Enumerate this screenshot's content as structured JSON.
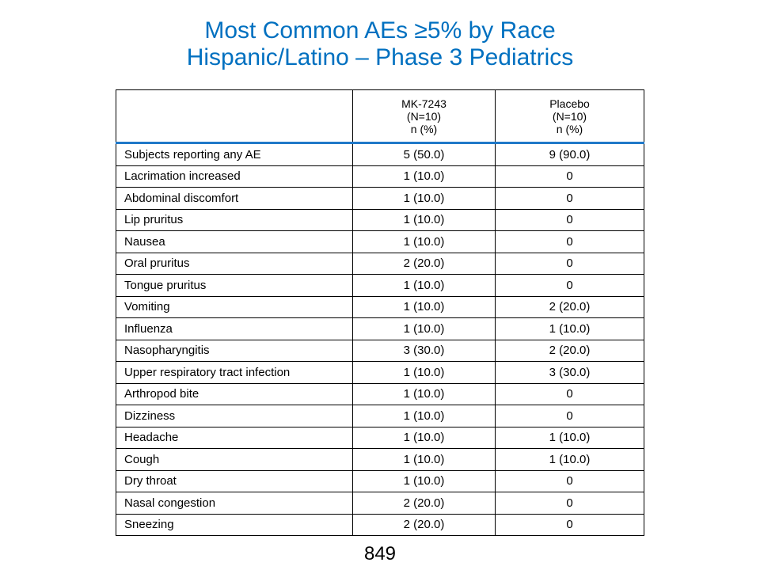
{
  "title": {
    "line1": "Most Common AEs ≥5% by Race",
    "line2": "Hispanic/Latino – Phase 3 Pediatrics"
  },
  "table": {
    "columns": [
      {
        "label": "",
        "n": "",
        "unit": ""
      },
      {
        "label": "MK-7243",
        "n": "(N=10)",
        "unit": "n (%)"
      },
      {
        "label": "Placebo",
        "n": "(N=10)",
        "unit": "n (%)"
      }
    ],
    "rows": [
      {
        "label": "Subjects reporting any AE",
        "mk": "5 (50.0)",
        "placebo": "9 (90.0)"
      },
      {
        "label": "Lacrimation increased",
        "mk": "1 (10.0)",
        "placebo": "0"
      },
      {
        "label": "Abdominal discomfort",
        "mk": "1 (10.0)",
        "placebo": "0"
      },
      {
        "label": "Lip pruritus",
        "mk": "1 (10.0)",
        "placebo": "0"
      },
      {
        "label": "Nausea",
        "mk": "1 (10.0)",
        "placebo": "0"
      },
      {
        "label": "Oral pruritus",
        "mk": "2 (20.0)",
        "placebo": "0"
      },
      {
        "label": "Tongue pruritus",
        "mk": "1 (10.0)",
        "placebo": "0"
      },
      {
        "label": "Vomiting",
        "mk": "1 (10.0)",
        "placebo": "2 (20.0)"
      },
      {
        "label": "Influenza",
        "mk": "1 (10.0)",
        "placebo": "1 (10.0)"
      },
      {
        "label": "Nasopharyngitis",
        "mk": "3 (30.0)",
        "placebo": "2 (20.0)"
      },
      {
        "label": "Upper respiratory tract infection",
        "mk": "1 (10.0)",
        "placebo": "3 (30.0)"
      },
      {
        "label": "Arthropod bite",
        "mk": "1 (10.0)",
        "placebo": "0"
      },
      {
        "label": "Dizziness",
        "mk": "1 (10.0)",
        "placebo": "0"
      },
      {
        "label": "Headache",
        "mk": "1 (10.0)",
        "placebo": "1 (10.0)"
      },
      {
        "label": "Cough",
        "mk": "1 (10.0)",
        "placebo": "1 (10.0)"
      },
      {
        "label": "Dry throat",
        "mk": "1 (10.0)",
        "placebo": "0"
      },
      {
        "label": "Nasal congestion",
        "mk": "2 (20.0)",
        "placebo": "0"
      },
      {
        "label": "Sneezing",
        "mk": "2 (20.0)",
        "placebo": "0"
      }
    ]
  },
  "page_number": "849",
  "colors": {
    "title": "#0070C0",
    "header_rule": "#1F78C8"
  }
}
